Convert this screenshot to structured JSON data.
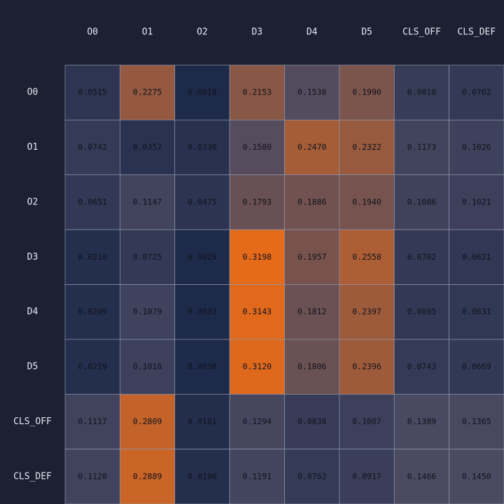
{
  "chart_data": {
    "type": "heatmap",
    "title": "",
    "xlabel": "",
    "ylabel": "",
    "x_labels": [
      "O0",
      "O1",
      "O2",
      "D3",
      "D4",
      "D5",
      "CLS_OFF",
      "CLS_DEF"
    ],
    "y_labels": [
      "O0",
      "O1",
      "O2",
      "D3",
      "D4",
      "D5",
      "CLS_OFF",
      "CLS_DEF"
    ],
    "values": [
      [
        "0.0515",
        "0.2275",
        "0.0018",
        "0.2153",
        "0.1538",
        "0.1990",
        "0.0810",
        "0.0702"
      ],
      [
        "0.0742",
        "0.0357",
        "0.0330",
        "0.1580",
        "0.2470",
        "0.2322",
        "0.1173",
        "0.1026"
      ],
      [
        "0.0651",
        "0.1147",
        "0.0475",
        "0.1793",
        "0.1886",
        "0.1940",
        "0.1086",
        "0.1021"
      ],
      [
        "0.0210",
        "0.0725",
        "0.0029",
        "0.3198",
        "0.1957",
        "0.2558",
        "0.0702",
        "0.0621"
      ],
      [
        "0.0209",
        "0.1079",
        "0.0033",
        "0.3143",
        "0.1812",
        "0.2397",
        "0.0695",
        "0.0631"
      ],
      [
        "0.0219",
        "0.1018",
        "0.0030",
        "0.3120",
        "0.1806",
        "0.2396",
        "0.0743",
        "0.0669"
      ],
      [
        "0.1117",
        "0.2809",
        "0.0181",
        "0.1294",
        "0.0838",
        "0.1007",
        "0.1389",
        "0.1365"
      ],
      [
        "0.1128",
        "0.2889",
        "0.0196",
        "0.1191",
        "0.0762",
        "0.0917",
        "0.1466",
        "0.1450"
      ]
    ],
    "value_range": [
      0.0018,
      0.3198
    ],
    "colormap": {
      "low": "#1e2a4a",
      "mid": "#4b4a62",
      "high": "#e56a1a"
    },
    "grid": true,
    "legend": "none"
  },
  "colors": {
    "background": "#1b2032",
    "row_header_bg": "#1b2032",
    "label_text": "#e6e9f2",
    "cell_text": "#10131c",
    "grid_line": "#8f98ad"
  }
}
